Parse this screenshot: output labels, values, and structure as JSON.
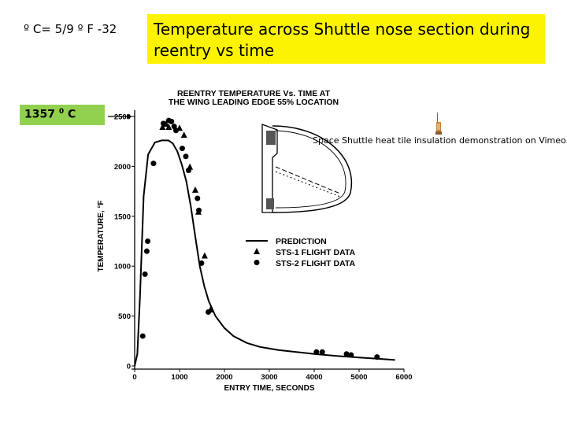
{
  "formula": "º C= 5/9 º F -32",
  "title": "Temperature  across Shuttle nose section during reentry vs time",
  "annotation": {
    "value": "1357",
    "degree": "0",
    "unit": "C"
  },
  "video_link": "Space Shuttle heat tile insulation demonstration on Vimeo.mp4",
  "colors": {
    "title_bg": "#fbf300",
    "annotation_bg": "#92d050"
  },
  "chart_data": {
    "type": "line",
    "title": "REENTRY TEMPERATURE Vs. TIME AT",
    "subtitle": "THE WING LEADING EDGE 55% LOCATION",
    "xlabel": "ENTRY TIME, SECONDS",
    "ylabel": "TEMPERATURE, °F",
    "xlim": [
      0,
      6000
    ],
    "ylim": [
      0,
      2500
    ],
    "x_ticks": [
      0,
      1000,
      2000,
      3000,
      4000,
      5000,
      6000
    ],
    "y_ticks": [
      0,
      500,
      1000,
      1500,
      2000,
      2500
    ],
    "legend_position": "right",
    "series": [
      {
        "name": "PREDICTION",
        "kind": "line",
        "x": [
          0,
          60,
          120,
          200,
          300,
          450,
          600,
          750,
          850,
          950,
          1050,
          1150,
          1250,
          1350,
          1450,
          1550,
          1650,
          1800,
          2000,
          2200,
          2500,
          2800,
          3200,
          3600,
          4000,
          4500,
          5000,
          5500,
          5800
        ],
        "y": [
          0,
          120,
          700,
          1700,
          2120,
          2240,
          2260,
          2260,
          2230,
          2150,
          2020,
          1850,
          1600,
          1300,
          1000,
          800,
          650,
          500,
          380,
          300,
          230,
          190,
          160,
          140,
          120,
          100,
          85,
          70,
          60
        ]
      },
      {
        "name": "STS-1 FLIGHT DATA",
        "kind": "triangle",
        "x": [
          620,
          700,
          760,
          1000,
          1100,
          1230,
          1350,
          1420,
          1560,
          1690
        ],
        "y": [
          2390,
          2420,
          2390,
          2380,
          2310,
          1990,
          1760,
          1540,
          1100,
          560
        ]
      },
      {
        "name": "STS-2 FLIGHT DATA",
        "kind": "circle",
        "x": [
          180,
          230,
          270,
          290,
          420,
          640,
          760,
          820,
          880,
          920,
          1060,
          1140,
          1200,
          1400,
          1430,
          1490,
          1640,
          4050,
          4180,
          4720,
          4820,
          5400
        ],
        "y": [
          300,
          920,
          1150,
          1250,
          2030,
          2430,
          2460,
          2450,
          2400,
          2360,
          2180,
          2100,
          1960,
          1680,
          1560,
          1030,
          540,
          140,
          140,
          120,
          110,
          90
        ]
      }
    ]
  }
}
